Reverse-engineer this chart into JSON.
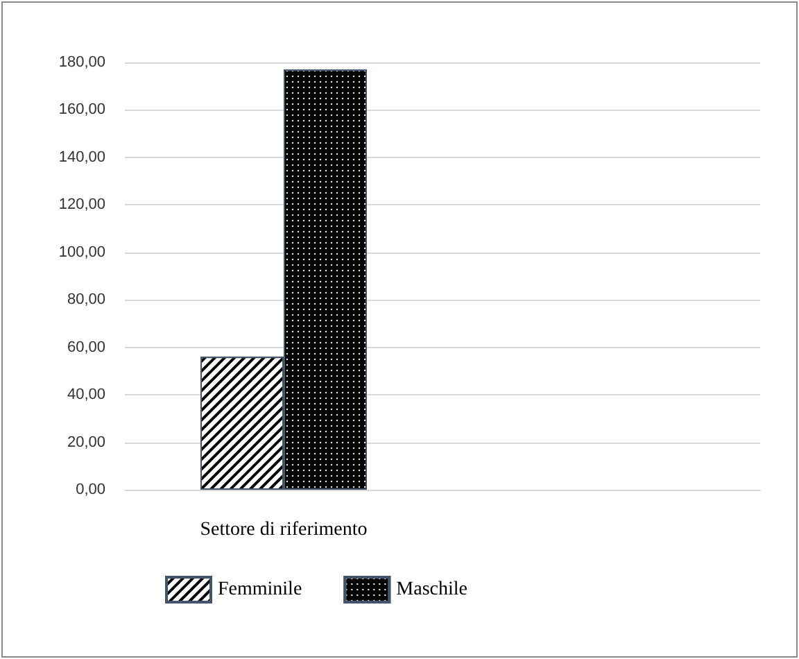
{
  "chart_data": {
    "type": "bar",
    "categories": [
      "Settore di riferimento",
      null
    ],
    "series": [
      {
        "name": "Femminile",
        "color": "#000000",
        "values": [
          56,
          null
        ]
      },
      {
        "name": "Maschile",
        "color": "#000000",
        "values": [
          177,
          null
        ]
      }
    ],
    "ylim": [
      0,
      180
    ],
    "yticks": [
      {
        "value": 0,
        "label": "0,00"
      },
      {
        "value": 20,
        "label": "20,00"
      },
      {
        "value": 40,
        "label": "40,00"
      },
      {
        "value": 60,
        "label": "60,00"
      },
      {
        "value": 80,
        "label": "80,00"
      },
      {
        "value": 100,
        "label": "100,00"
      },
      {
        "value": 120,
        "label": "120,00"
      },
      {
        "value": 140,
        "label": "140,00"
      },
      {
        "value": 160,
        "label": "160,00"
      },
      {
        "value": 180,
        "label": "180,00"
      }
    ],
    "grid": "y",
    "legend": "bottom left"
  }
}
